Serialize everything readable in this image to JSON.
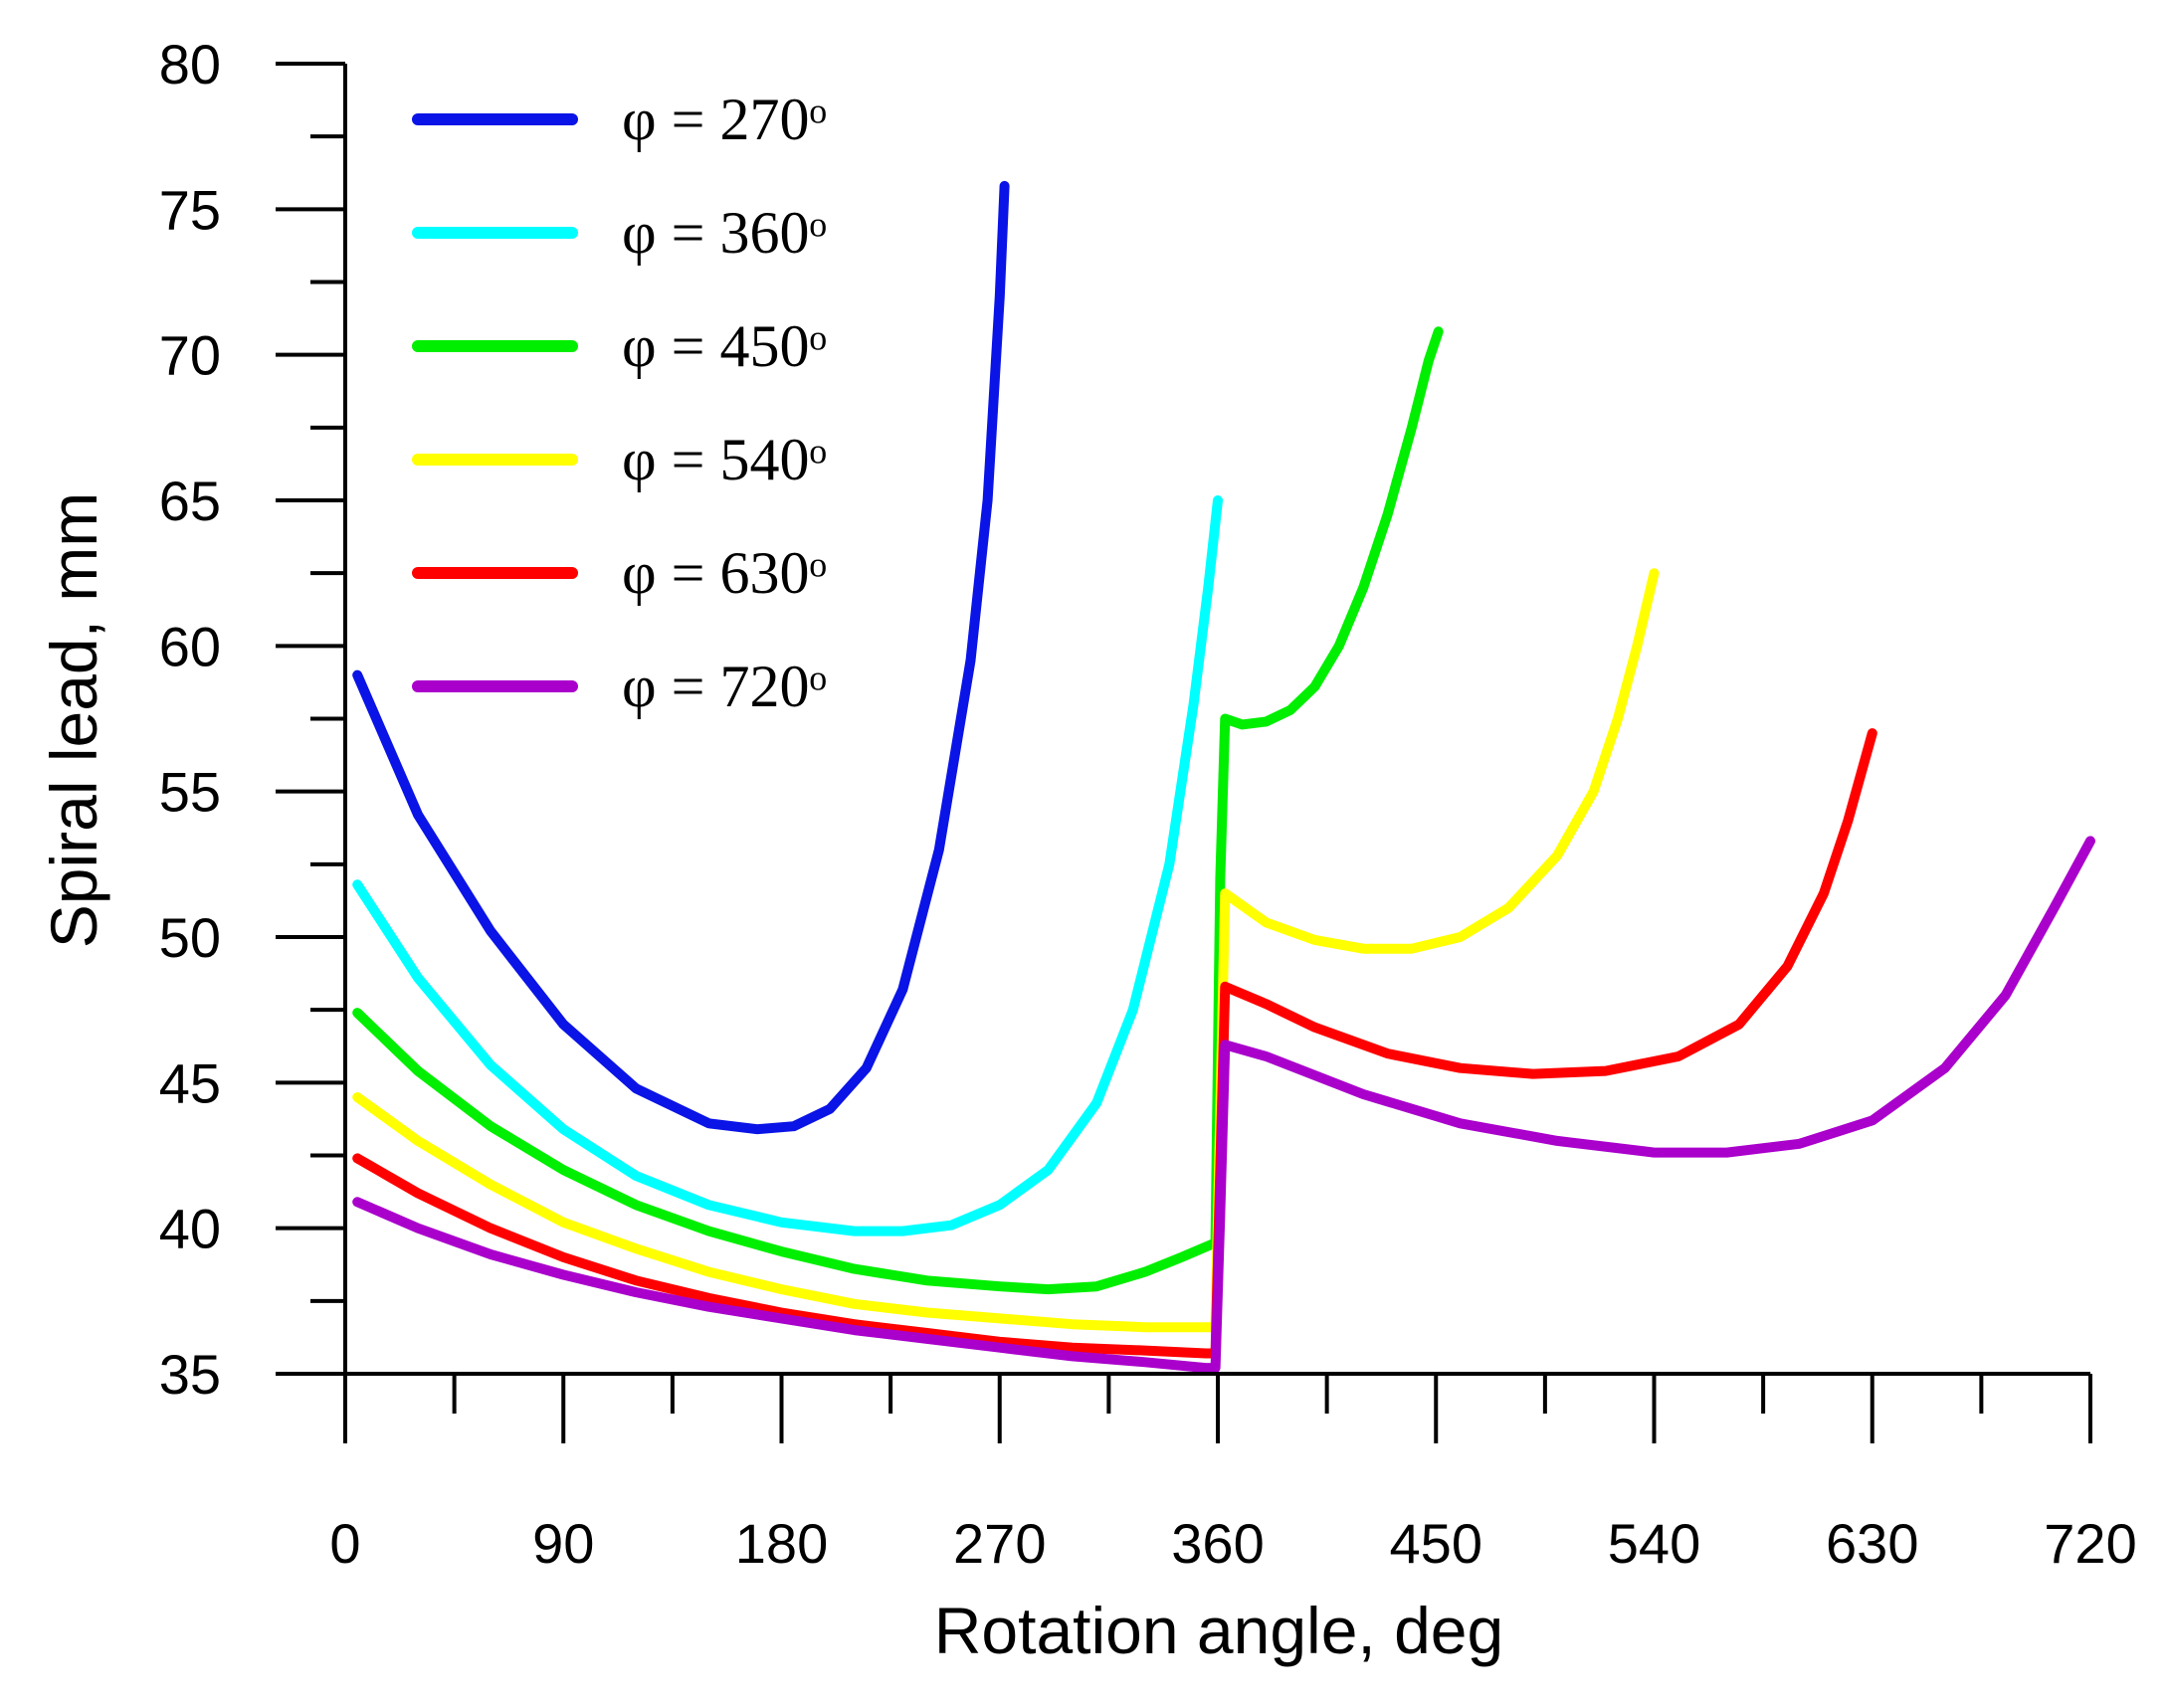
{
  "chart_data": {
    "type": "line",
    "title": "",
    "xlabel": "Rotation angle, deg",
    "ylabel": "Spiral lead, mm",
    "xlim": [
      0,
      720
    ],
    "ylim": [
      35,
      80
    ],
    "x_ticks": [
      0,
      90,
      180,
      270,
      360,
      450,
      540,
      630,
      720
    ],
    "y_ticks": [
      35,
      40,
      45,
      50,
      55,
      60,
      65,
      70,
      75,
      80
    ],
    "legend_position": "top-left",
    "grid": false,
    "series": [
      {
        "name": "φ = 270ᵒ",
        "color": "#0a14e6",
        "points": [
          [
            5,
            59.0
          ],
          [
            30,
            54.2
          ],
          [
            60,
            50.2
          ],
          [
            90,
            47.0
          ],
          [
            120,
            44.8
          ],
          [
            150,
            43.6
          ],
          [
            170,
            43.4
          ],
          [
            185,
            43.5
          ],
          [
            200,
            44.1
          ],
          [
            215,
            45.5
          ],
          [
            230,
            48.2
          ],
          [
            245,
            53.0
          ],
          [
            258,
            59.5
          ],
          [
            265,
            65.0
          ],
          [
            270,
            72.0
          ],
          [
            272,
            75.8
          ]
        ]
      },
      {
        "name": "φ = 360ᵒ",
        "color": "#00ffff",
        "points": [
          [
            5,
            51.8
          ],
          [
            30,
            48.6
          ],
          [
            60,
            45.6
          ],
          [
            90,
            43.4
          ],
          [
            120,
            41.8
          ],
          [
            150,
            40.8
          ],
          [
            180,
            40.2
          ],
          [
            210,
            39.9
          ],
          [
            230,
            39.9
          ],
          [
            250,
            40.1
          ],
          [
            270,
            40.8
          ],
          [
            290,
            42.0
          ],
          [
            310,
            44.3
          ],
          [
            325,
            47.5
          ],
          [
            340,
            52.5
          ],
          [
            350,
            58.0
          ],
          [
            356,
            62.0
          ],
          [
            360,
            65.0
          ]
        ]
      },
      {
        "name": "φ = 450ᵒ",
        "color": "#00ee00",
        "points": [
          [
            5,
            47.4
          ],
          [
            30,
            45.4
          ],
          [
            60,
            43.5
          ],
          [
            90,
            42.0
          ],
          [
            120,
            40.8
          ],
          [
            150,
            39.9
          ],
          [
            180,
            39.2
          ],
          [
            210,
            38.6
          ],
          [
            240,
            38.2
          ],
          [
            270,
            38.0
          ],
          [
            290,
            37.9
          ],
          [
            310,
            38.0
          ],
          [
            330,
            38.5
          ],
          [
            345,
            39.0
          ],
          [
            359,
            39.5
          ],
          [
            361,
            52.0
          ],
          [
            363,
            57.5
          ],
          [
            370,
            57.3
          ],
          [
            380,
            57.4
          ],
          [
            390,
            57.8
          ],
          [
            400,
            58.6
          ],
          [
            410,
            60.0
          ],
          [
            420,
            62.0
          ],
          [
            430,
            64.5
          ],
          [
            440,
            67.5
          ],
          [
            447,
            69.8
          ],
          [
            451,
            70.8
          ]
        ]
      },
      {
        "name": "φ = 540ᵒ",
        "color": "#ffff00",
        "points": [
          [
            5,
            44.5
          ],
          [
            30,
            43.0
          ],
          [
            60,
            41.5
          ],
          [
            90,
            40.2
          ],
          [
            120,
            39.3
          ],
          [
            150,
            38.5
          ],
          [
            180,
            37.9
          ],
          [
            210,
            37.4
          ],
          [
            240,
            37.1
          ],
          [
            270,
            36.9
          ],
          [
            300,
            36.7
          ],
          [
            330,
            36.6
          ],
          [
            355,
            36.6
          ],
          [
            359,
            36.6
          ],
          [
            361,
            44.0
          ],
          [
            363,
            51.5
          ],
          [
            380,
            50.5
          ],
          [
            400,
            49.9
          ],
          [
            420,
            49.6
          ],
          [
            440,
            49.6
          ],
          [
            460,
            50.0
          ],
          [
            480,
            51.0
          ],
          [
            500,
            52.8
          ],
          [
            515,
            55.0
          ],
          [
            525,
            57.5
          ],
          [
            533,
            60.0
          ],
          [
            540,
            62.5
          ]
        ]
      },
      {
        "name": "φ = 630ᵒ",
        "color": "#ff0000",
        "points": [
          [
            5,
            42.4
          ],
          [
            30,
            41.2
          ],
          [
            60,
            40.0
          ],
          [
            90,
            39.0
          ],
          [
            120,
            38.2
          ],
          [
            150,
            37.6
          ],
          [
            180,
            37.1
          ],
          [
            210,
            36.7
          ],
          [
            240,
            36.4
          ],
          [
            270,
            36.1
          ],
          [
            300,
            35.9
          ],
          [
            330,
            35.8
          ],
          [
            355,
            35.7
          ],
          [
            359,
            35.7
          ],
          [
            361,
            42.0
          ],
          [
            363,
            48.3
          ],
          [
            380,
            47.7
          ],
          [
            400,
            46.9
          ],
          [
            430,
            46.0
          ],
          [
            460,
            45.5
          ],
          [
            490,
            45.3
          ],
          [
            520,
            45.4
          ],
          [
            550,
            45.9
          ],
          [
            575,
            47.0
          ],
          [
            595,
            49.0
          ],
          [
            610,
            51.5
          ],
          [
            620,
            54.0
          ],
          [
            630,
            57.0
          ]
        ]
      },
      {
        "name": "φ = 720ᵒ",
        "color": "#aa00cc",
        "points": [
          [
            5,
            40.9
          ],
          [
            30,
            40.0
          ],
          [
            60,
            39.1
          ],
          [
            90,
            38.4
          ],
          [
            120,
            37.8
          ],
          [
            150,
            37.3
          ],
          [
            180,
            36.9
          ],
          [
            210,
            36.5
          ],
          [
            240,
            36.2
          ],
          [
            270,
            35.9
          ],
          [
            300,
            35.6
          ],
          [
            330,
            35.4
          ],
          [
            355,
            35.2
          ],
          [
            359,
            35.2
          ],
          [
            361,
            40.5
          ],
          [
            363,
            46.3
          ],
          [
            380,
            45.9
          ],
          [
            420,
            44.6
          ],
          [
            460,
            43.6
          ],
          [
            500,
            43.0
          ],
          [
            540,
            42.6
          ],
          [
            570,
            42.6
          ],
          [
            600,
            42.9
          ],
          [
            630,
            43.7
          ],
          [
            660,
            45.5
          ],
          [
            685,
            48.0
          ],
          [
            705,
            51.0
          ],
          [
            720,
            53.3
          ]
        ]
      }
    ]
  }
}
